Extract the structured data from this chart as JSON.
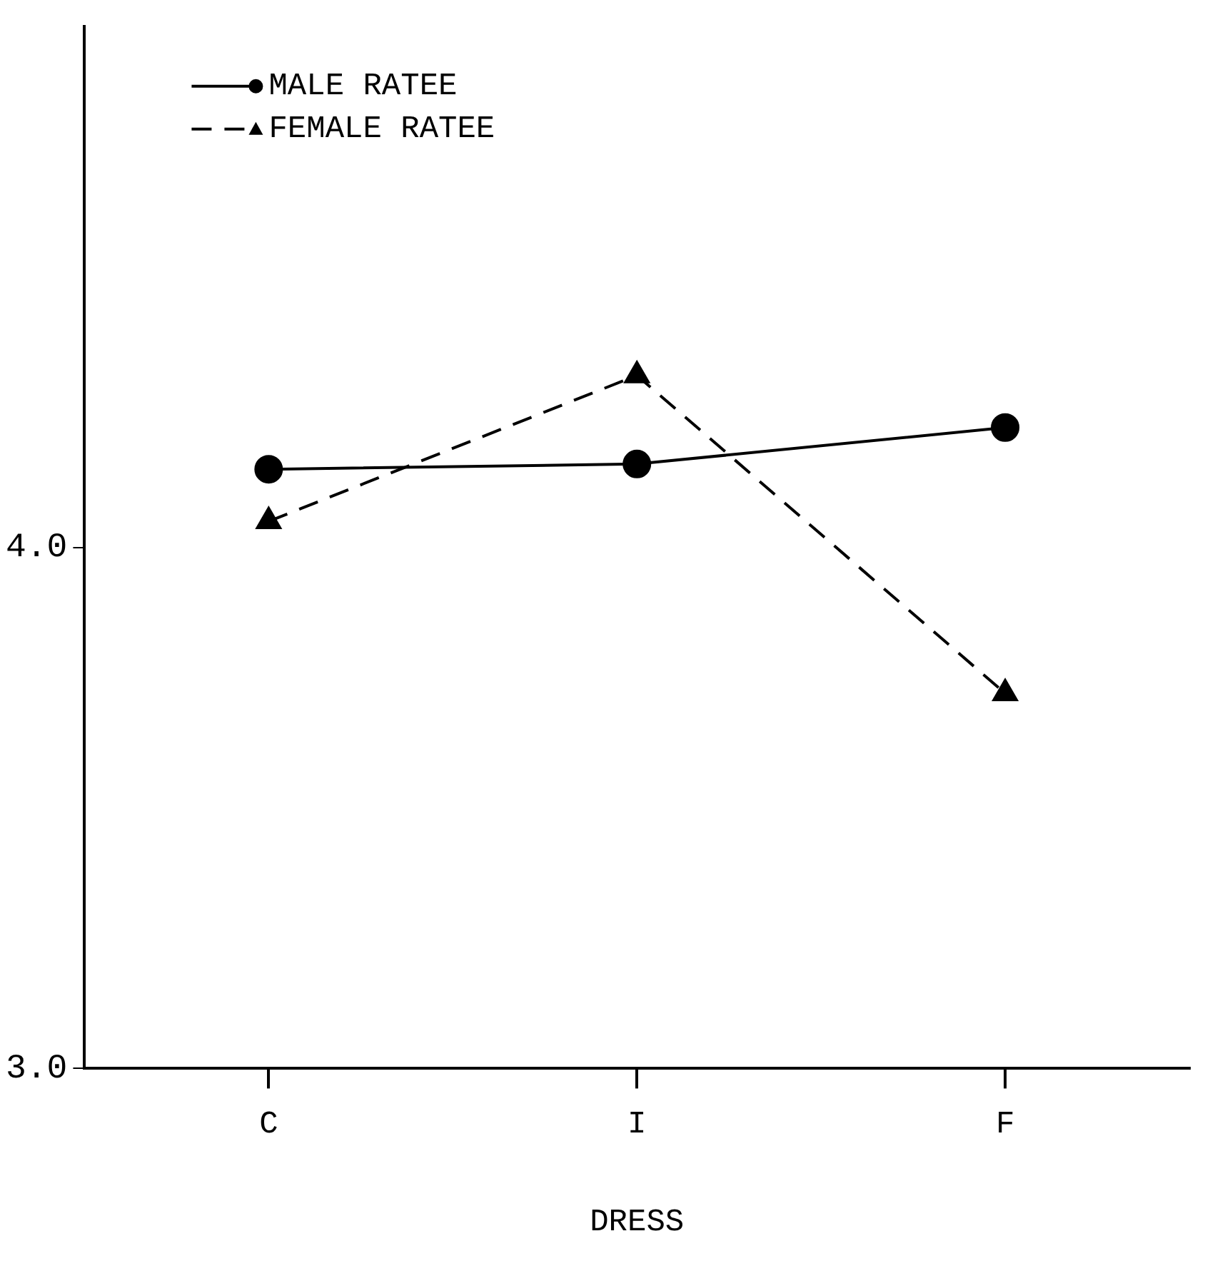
{
  "chart_data": {
    "type": "line",
    "xlabel": "DRESS",
    "categories": [
      "C",
      "I",
      "F"
    ],
    "ylim": [
      3,
      5
    ],
    "yticks": [
      {
        "value": 3,
        "label": "3.0"
      },
      {
        "value": 4,
        "label": "4.0"
      }
    ],
    "grid": false,
    "legend": "top left",
    "series": [
      {
        "name": "MALE RATEE",
        "color": "#000000",
        "values": [
          4.15,
          4.16,
          4.23
        ],
        "marker": "circle",
        "line_style": "solid"
      },
      {
        "name": "FEMALE RATEE",
        "color": "#000000",
        "values": [
          4.05,
          4.33,
          3.72
        ],
        "marker": "triangle",
        "line_style": "dashed"
      }
    ]
  }
}
